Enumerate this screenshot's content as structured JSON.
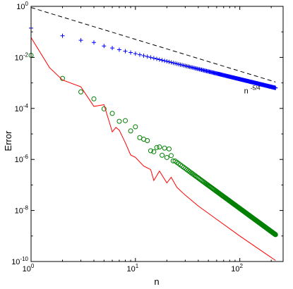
{
  "chart_data": {
    "type": "scatter",
    "title": "",
    "xlabel": "n",
    "ylabel": "Error",
    "xscale": "log",
    "yscale": "log",
    "xlim": [
      1,
      260
    ],
    "ylim": [
      1e-10,
      1
    ],
    "grid": false,
    "x_ticks": [
      {
        "value": 1,
        "base": "10",
        "exp": "0"
      },
      {
        "value": 10,
        "base": "10",
        "exp": "1"
      },
      {
        "value": 100,
        "base": "10",
        "exp": "2"
      }
    ],
    "y_ticks": [
      {
        "value": 1,
        "base": "10",
        "exp": "0"
      },
      {
        "value": 0.01,
        "base": "10",
        "exp": "-2"
      },
      {
        "value": 0.0001,
        "base": "10",
        "exp": "-4"
      },
      {
        "value": 1e-06,
        "base": "10",
        "exp": "-6"
      },
      {
        "value": 1e-08,
        "base": "10",
        "exp": "-8"
      },
      {
        "value": 1e-10,
        "base": "10",
        "exp": "-10"
      }
    ],
    "annotation": {
      "base": "n",
      "exp": "-5/4",
      "x": 100,
      "y": 0.0005
    },
    "reference_line": {
      "style": "dashed",
      "color": "#000000",
      "x": [
        1,
        220
      ],
      "y": [
        0.9,
        0.00108
      ]
    },
    "series": [
      {
        "marker": "plus",
        "color": "#0000ff",
        "form": "power",
        "coef": 0.14,
        "slope": -1.0,
        "x_range": [
          1,
          220
        ],
        "offsets": [
          0,
          0,
          0,
          0.04,
          0,
          0,
          0,
          0,
          0,
          0
        ]
      },
      {
        "marker": "circle",
        "color": "#008000",
        "form": "power",
        "coef": 0.012,
        "slope": -3.0,
        "x_range": [
          1,
          220
        ],
        "offsets": [
          0,
          0,
          0,
          0.1,
          0,
          0.06,
          -0.05,
          0.15,
          -0.1,
          0.2,
          -0.1,
          -0.05,
          0,
          -0.3,
          -0.25,
          0,
          0.1,
          -0.15,
          0.2,
          -0.1,
          0.3,
          0.1,
          -0.05,
          0,
          0
        ]
      },
      {
        "marker": "line",
        "color": "#ff0000",
        "points": [
          [
            1,
            0.06
          ],
          [
            1.5,
            0.004
          ],
          [
            2,
            0.0013
          ],
          [
            3,
            0.0007
          ],
          [
            4,
            0.00012
          ],
          [
            5,
            0.00014
          ],
          [
            6,
            1.2e-05
          ],
          [
            6.5,
            1.8e-05
          ],
          [
            7,
            1.4e-05
          ],
          [
            8,
            4.5e-06
          ],
          [
            9,
            1.5e-06
          ],
          [
            10,
            1.2e-06
          ],
          [
            12,
            5.5e-07
          ],
          [
            14,
            4e-07
          ],
          [
            15,
            1.5e-07
          ],
          [
            17,
            3.5e-07
          ],
          [
            20,
            1.2e-07
          ],
          [
            22,
            2e-07
          ],
          [
            25,
            8e-08
          ],
          [
            30,
            4e-08
          ],
          [
            40,
            1.5e-08
          ],
          [
            60,
            4.5e-09
          ],
          [
            100,
            1e-09
          ],
          [
            150,
            3.2e-10
          ],
          [
            220,
            1.1e-10
          ]
        ]
      }
    ]
  }
}
